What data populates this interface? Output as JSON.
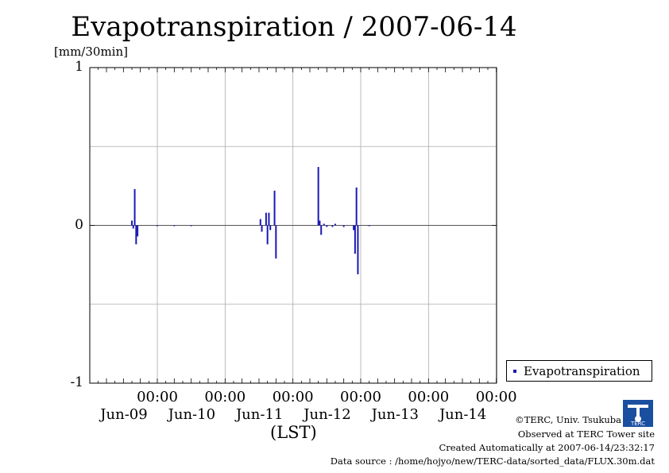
{
  "title": "Evapotranspiration / 2007-06-14",
  "unit_label": "[mm/30min]",
  "x_axis_label": "(LST)",
  "legend": {
    "label": "Evapotranspiration",
    "color": "#1a1ab4"
  },
  "footer": {
    "copyright": "©TERC, Univ. Tsukuba",
    "observed": "Observed at TERC Tower site",
    "created": "Created Automatically at 2007-06-14/23:32:17",
    "source": "Data source : /home/hojyo/new/TERC-data/sorted_data/FLUX.30m.dat"
  },
  "logo_text": "TERC",
  "chart_data": {
    "type": "bar",
    "title": "Evapotranspiration / 2007-06-14",
    "ylabel": "[mm/30min]",
    "xlabel": "(LST)",
    "ylim": [
      -1,
      1
    ],
    "yticks": [
      "1",
      "0",
      "-1"
    ],
    "x_ticks": [
      {
        "time": "00:00",
        "date": "Jun-09"
      },
      {
        "time": "00:00",
        "date": "Jun-10"
      },
      {
        "time": "00:00",
        "date": "Jun-11"
      },
      {
        "time": "00:00",
        "date": "Jun-12"
      },
      {
        "time": "00:00",
        "date": "Jun-13"
      },
      {
        "time": "00:00",
        "date": "Jun-14"
      }
    ],
    "grid": true,
    "legend_position": "right",
    "series": [
      {
        "name": "Evapotranspiration",
        "values": [
          {
            "t": "2007-06-08T15:00",
            "v": 0.03
          },
          {
            "t": "2007-06-08T15:30",
            "v": -0.02
          },
          {
            "t": "2007-06-08T16:00",
            "v": 0.23
          },
          {
            "t": "2007-06-08T16:30",
            "v": -0.12
          },
          {
            "t": "2007-06-08T17:00",
            "v": -0.07
          },
          {
            "t": "2007-06-09T00:00",
            "v": 0.0
          },
          {
            "t": "2007-06-09T06:00",
            "v": 0.0
          },
          {
            "t": "2007-06-09T12:00",
            "v": 0.0
          },
          {
            "t": "2007-06-10T12:30",
            "v": 0.04
          },
          {
            "t": "2007-06-10T13:00",
            "v": -0.04
          },
          {
            "t": "2007-06-10T14:30",
            "v": 0.08
          },
          {
            "t": "2007-06-10T15:00",
            "v": -0.12
          },
          {
            "t": "2007-06-10T15:30",
            "v": 0.08
          },
          {
            "t": "2007-06-10T16:00",
            "v": -0.03
          },
          {
            "t": "2007-06-10T17:30",
            "v": 0.22
          },
          {
            "t": "2007-06-10T18:00",
            "v": -0.21
          },
          {
            "t": "2007-06-11T09:00",
            "v": 0.37
          },
          {
            "t": "2007-06-11T09:30",
            "v": 0.03
          },
          {
            "t": "2007-06-11T10:00",
            "v": -0.06
          },
          {
            "t": "2007-06-11T11:00",
            "v": 0.01
          },
          {
            "t": "2007-06-11T12:00",
            "v": -0.01
          },
          {
            "t": "2007-06-11T14:00",
            "v": -0.01
          },
          {
            "t": "2007-06-11T15:00",
            "v": 0.01
          },
          {
            "t": "2007-06-11T18:00",
            "v": -0.01
          },
          {
            "t": "2007-06-11T21:30",
            "v": -0.03
          },
          {
            "t": "2007-06-11T22:00",
            "v": -0.18
          },
          {
            "t": "2007-06-11T22:30",
            "v": 0.24
          },
          {
            "t": "2007-06-11T23:00",
            "v": -0.31
          },
          {
            "t": "2007-06-12T03:00",
            "v": 0.0
          }
        ]
      }
    ]
  }
}
